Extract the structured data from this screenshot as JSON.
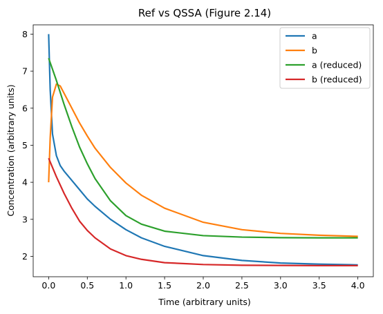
{
  "chart_data": {
    "type": "line",
    "title": "Ref vs QSSA (Figure 2.14)",
    "xlabel": "Time (arbitrary units)",
    "ylabel": "Concentration (arbitrary units)",
    "xlim": [
      -0.2,
      4.2
    ],
    "ylim": [
      1.45,
      8.25
    ],
    "xticks": [
      0.0,
      0.5,
      1.0,
      1.5,
      2.0,
      2.5,
      3.0,
      3.5,
      4.0
    ],
    "xtick_labels": [
      "0.0",
      "0.5",
      "1.0",
      "1.5",
      "2.0",
      "2.5",
      "3.0",
      "3.5",
      "4.0"
    ],
    "yticks": [
      2,
      3,
      4,
      5,
      6,
      7,
      8
    ],
    "ytick_labels": [
      "2",
      "3",
      "4",
      "5",
      "6",
      "7",
      "8"
    ],
    "grid": false,
    "legend_position": "top-right",
    "series": [
      {
        "name": "a",
        "color": "#1f77b4",
        "x": [
          0.0,
          0.02,
          0.05,
          0.1,
          0.15,
          0.2,
          0.3,
          0.4,
          0.5,
          0.6,
          0.8,
          1.0,
          1.2,
          1.5,
          2.0,
          2.5,
          3.0,
          3.5,
          4.0
        ],
        "y": [
          8.0,
          6.5,
          5.3,
          4.72,
          4.45,
          4.3,
          4.05,
          3.8,
          3.55,
          3.35,
          3.0,
          2.72,
          2.5,
          2.27,
          2.02,
          1.89,
          1.82,
          1.79,
          1.77
        ]
      },
      {
        "name": "b",
        "color": "#ff7f0e",
        "x": [
          0.0,
          0.02,
          0.05,
          0.1,
          0.15,
          0.2,
          0.3,
          0.4,
          0.5,
          0.6,
          0.8,
          1.0,
          1.2,
          1.5,
          2.0,
          2.5,
          3.0,
          3.5,
          4.0
        ],
        "y": [
          4.0,
          5.2,
          6.3,
          6.65,
          6.6,
          6.4,
          6.0,
          5.6,
          5.25,
          4.92,
          4.4,
          3.98,
          3.65,
          3.3,
          2.92,
          2.72,
          2.62,
          2.57,
          2.54
        ]
      },
      {
        "name": "a (reduced)",
        "color": "#2ca02c",
        "x": [
          0.0,
          0.05,
          0.1,
          0.2,
          0.3,
          0.4,
          0.5,
          0.6,
          0.8,
          1.0,
          1.2,
          1.5,
          2.0,
          2.5,
          3.0,
          3.5,
          4.0
        ],
        "y": [
          7.35,
          7.05,
          6.75,
          6.1,
          5.5,
          4.95,
          4.5,
          4.1,
          3.5,
          3.1,
          2.87,
          2.68,
          2.56,
          2.52,
          2.505,
          2.5,
          2.5
        ]
      },
      {
        "name": "b (reduced)",
        "color": "#d62728",
        "x": [
          0.0,
          0.05,
          0.1,
          0.2,
          0.3,
          0.4,
          0.5,
          0.6,
          0.8,
          1.0,
          1.2,
          1.5,
          2.0,
          2.5,
          3.0,
          3.5,
          4.0
        ],
        "y": [
          4.65,
          4.4,
          4.15,
          3.7,
          3.3,
          2.95,
          2.7,
          2.5,
          2.2,
          2.02,
          1.92,
          1.83,
          1.78,
          1.76,
          1.755,
          1.75,
          1.75
        ]
      }
    ]
  }
}
